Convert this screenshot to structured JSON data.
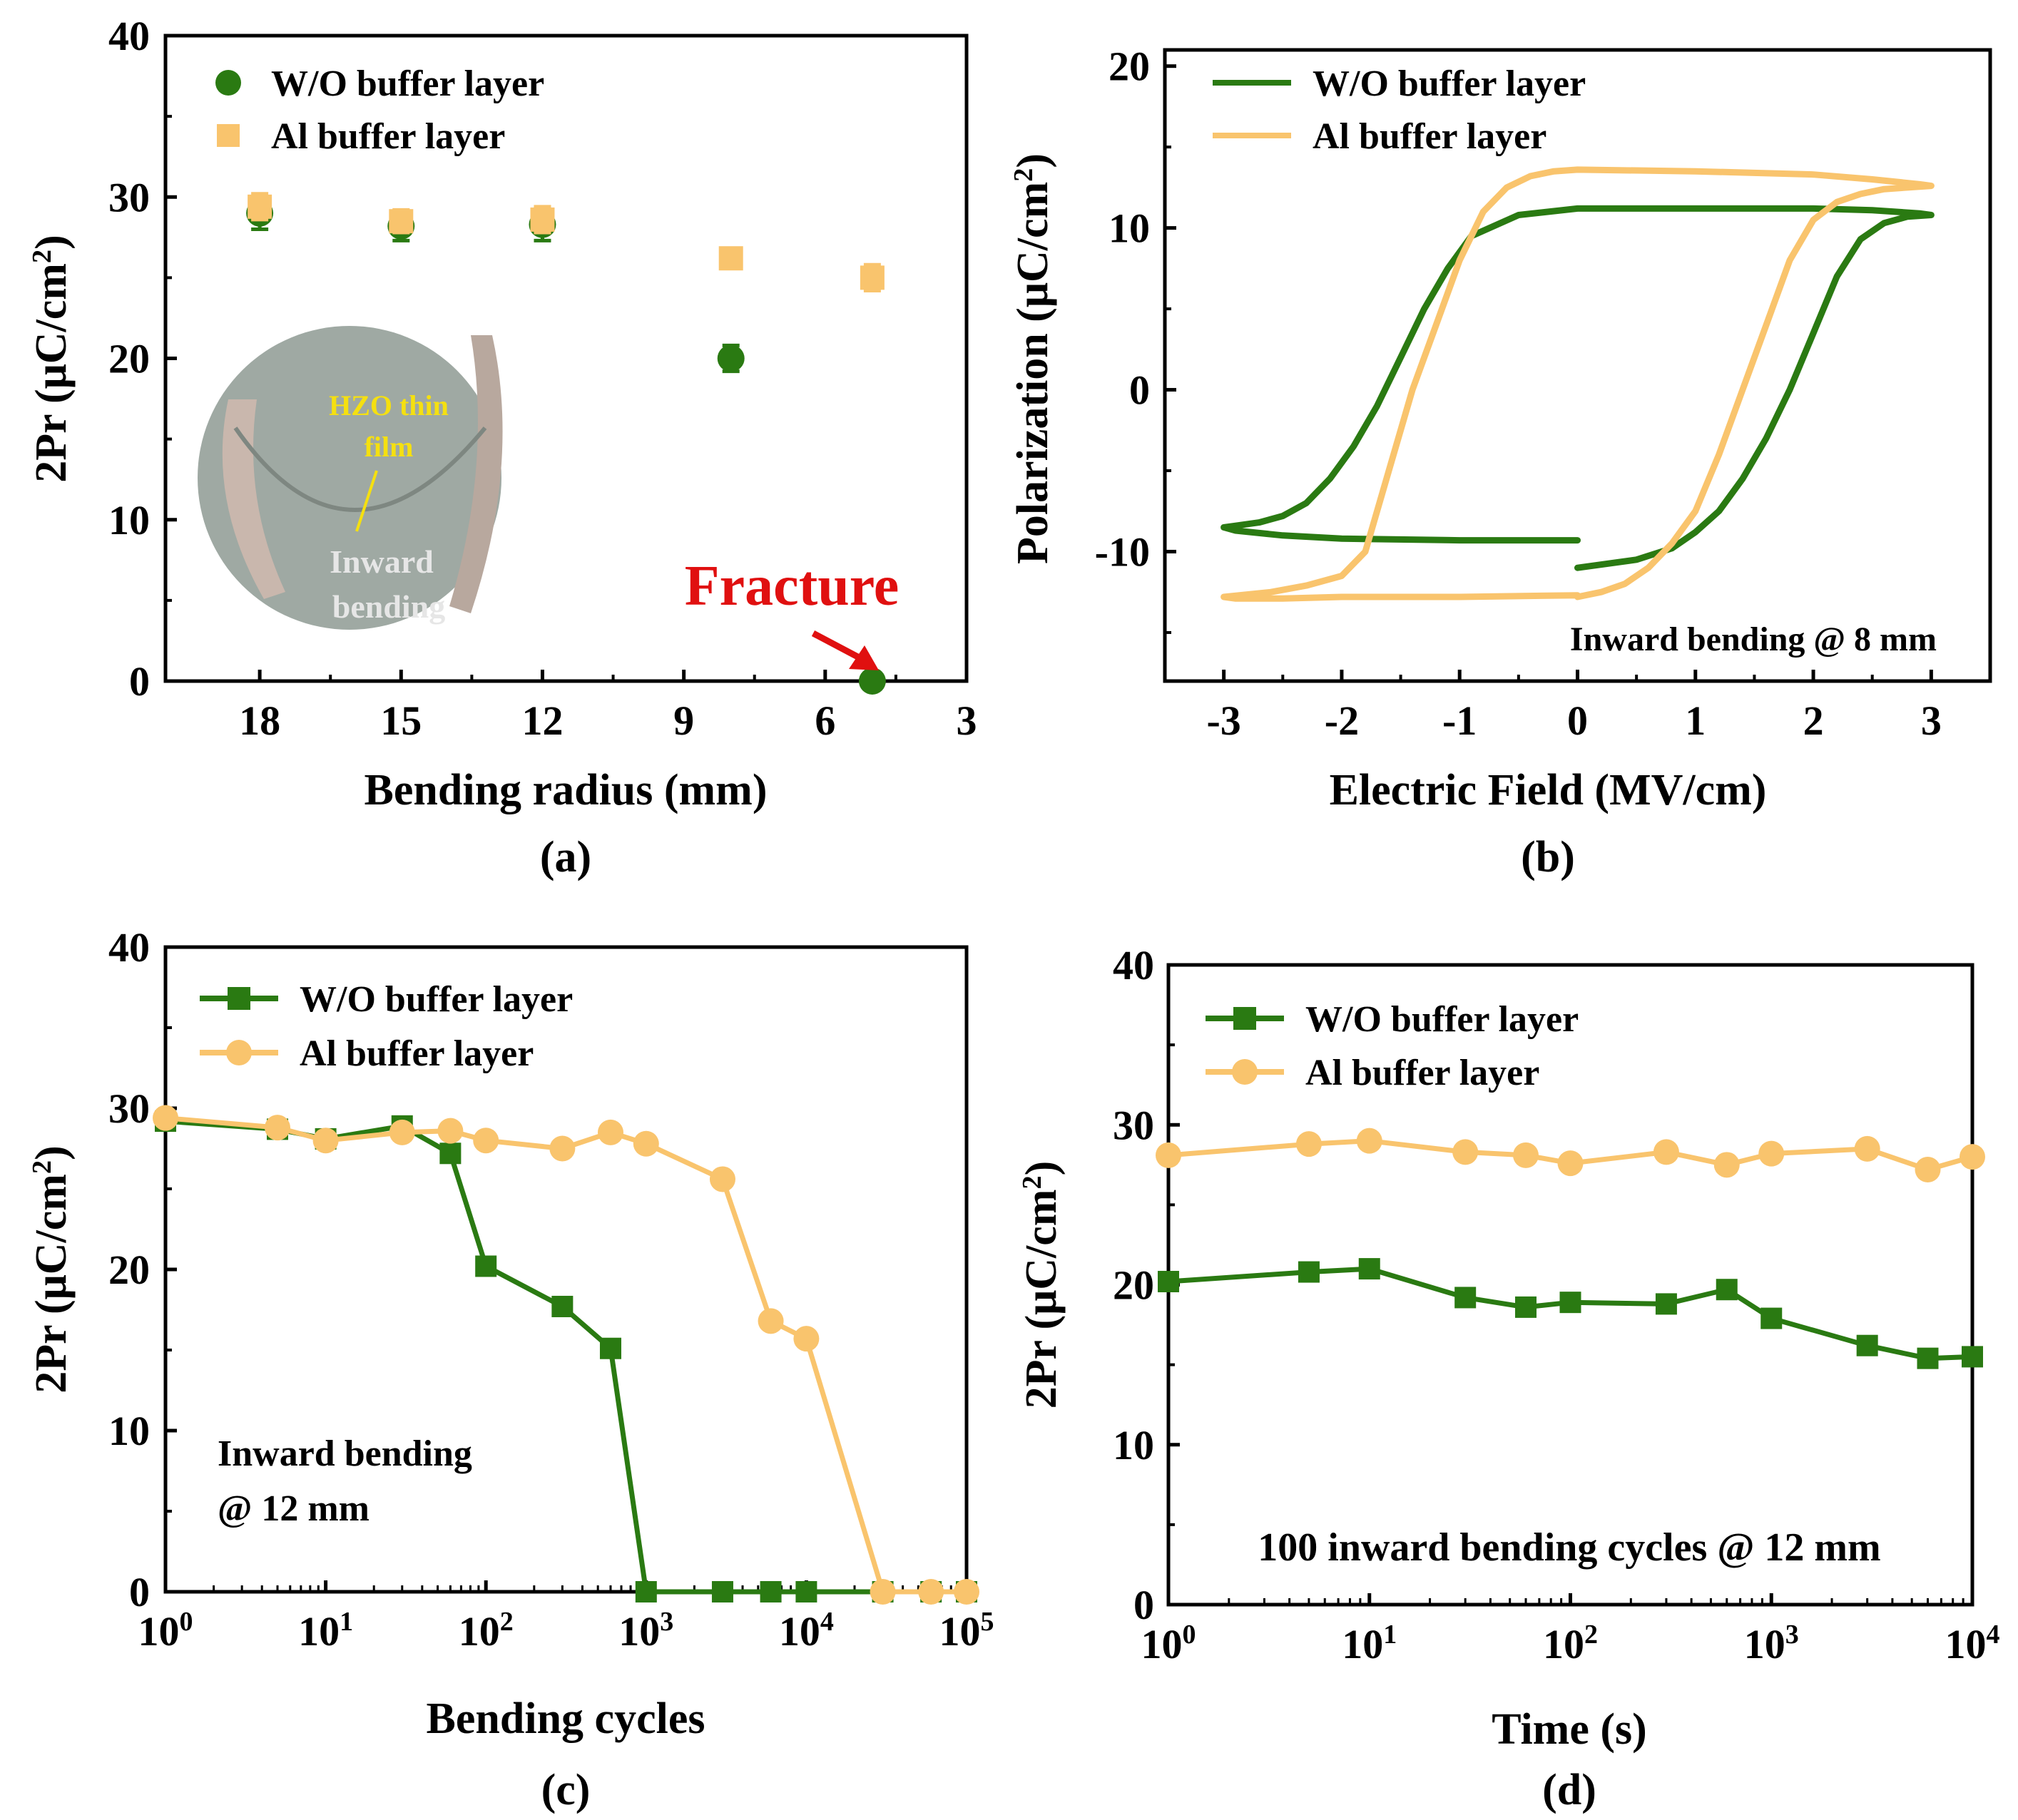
{
  "colors": {
    "green": "#2a7a12",
    "orange": "#f9c46d",
    "red": "#e01010",
    "yellow_text": "#f5e010",
    "photo_text": "#e6e6e6"
  },
  "chart_data": [
    {
      "id": "a",
      "type": "scatter",
      "panel_label": "(a)",
      "xlabel": "Bending radius (mm)",
      "ylabel": "2Pr (μC/cm²)",
      "xlim": [
        20,
        3
      ],
      "ylim": [
        0,
        40
      ],
      "xticks": [
        "18",
        "15",
        "12",
        "9",
        "6",
        "3"
      ],
      "yticks": [
        "0",
        "10",
        "20",
        "30",
        "40"
      ],
      "series": [
        {
          "name": "W/O buffer layer",
          "marker": "circle",
          "x": [
            18,
            15,
            12,
            8,
            5
          ],
          "y": [
            29,
            28.2,
            28.3,
            20,
            0
          ],
          "err": [
            1.0,
            0.9,
            1.0,
            0.8,
            0.3
          ]
        },
        {
          "name": "Al buffer layer",
          "marker": "square",
          "x": [
            18,
            15,
            12,
            8,
            5
          ],
          "y": [
            29.4,
            28.5,
            28.6,
            26.2,
            25
          ],
          "err": [
            0.8,
            0.7,
            0.8,
            0.6,
            0.8
          ]
        }
      ],
      "annotations": {
        "fracture": "Fracture",
        "inset_label_1": "HZO thin",
        "inset_label_2": "film",
        "inset_label_3": "Inward",
        "inset_label_4": "bending"
      }
    },
    {
      "id": "b",
      "type": "line",
      "panel_label": "(b)",
      "xlabel": "Electric Field (MV/cm)",
      "ylabel": "Polarization (μC/cm²)",
      "xlim": [
        -3.5,
        3.5
      ],
      "ylim": [
        -18,
        21
      ],
      "xticks": [
        "-3",
        "-2",
        "-1",
        "0",
        "1",
        "2",
        "3"
      ],
      "yticks": [
        "-10",
        "0",
        "10",
        "20"
      ],
      "annotation": "Inward bending @ 8 mm",
      "series": [
        {
          "name": "W/O buffer layer",
          "x": [
            0,
            0.5,
            0.8,
            1.0,
            1.2,
            1.4,
            1.6,
            1.8,
            2.0,
            2.2,
            2.4,
            2.6,
            2.8,
            3.0,
            2.9,
            2.5,
            2.0,
            1.0,
            0.0,
            -0.5,
            -0.9,
            -1.1,
            -1.3,
            -1.5,
            -1.7,
            -1.9,
            -2.1,
            -2.3,
            -2.5,
            -2.7,
            -2.9,
            -3.0,
            -2.9,
            -2.5,
            -2.0,
            -1.0,
            0.0
          ],
          "y": [
            -11,
            -10.5,
            -9.8,
            -8.8,
            -7.5,
            -5.5,
            -3,
            0,
            3.5,
            7,
            9.3,
            10.3,
            10.7,
            10.8,
            10.9,
            11.1,
            11.2,
            11.2,
            11.2,
            10.8,
            9.5,
            7.5,
            5,
            2,
            -1,
            -3.5,
            -5.5,
            -7,
            -7.8,
            -8.2,
            -8.4,
            -8.5,
            -8.7,
            -9.0,
            -9.2,
            -9.3,
            -9.3
          ]
        },
        {
          "name": "Al buffer layer",
          "x": [
            0,
            0.2,
            0.4,
            0.6,
            0.8,
            1.0,
            1.2,
            1.4,
            1.6,
            1.8,
            2.0,
            2.2,
            2.4,
            2.6,
            2.8,
            3.0,
            2.9,
            2.5,
            2.0,
            1.0,
            0.0,
            -0.2,
            -0.4,
            -0.6,
            -0.8,
            -1.0,
            -1.2,
            -1.4,
            -1.6,
            -1.8,
            -2.0,
            -2.3,
            -2.6,
            -3.0,
            -2.9,
            -2.5,
            -2.0,
            -1.0,
            0.0
          ],
          "y": [
            -12.8,
            -12.5,
            -12,
            -11,
            -9.5,
            -7.5,
            -4,
            0,
            4,
            8,
            10.5,
            11.6,
            12.1,
            12.4,
            12.5,
            12.6,
            12.7,
            13.0,
            13.3,
            13.5,
            13.6,
            13.5,
            13.2,
            12.5,
            11,
            8,
            4,
            0,
            -5,
            -10,
            -11.5,
            -12.1,
            -12.5,
            -12.8,
            -12.9,
            -12.9,
            -12.8,
            -12.8,
            -12.7
          ]
        }
      ]
    },
    {
      "id": "c",
      "type": "line",
      "panel_label": "(c)",
      "xlabel": "Bending cycles",
      "ylabel": "2Pr (μC/cm²)",
      "xscale": "log",
      "xlim_exp": [
        0,
        5
      ],
      "ylim": [
        0,
        40
      ],
      "xticks": [
        {
          "base": "10",
          "exp": "0"
        },
        {
          "base": "10",
          "exp": "1"
        },
        {
          "base": "10",
          "exp": "2"
        },
        {
          "base": "10",
          "exp": "3"
        },
        {
          "base": "10",
          "exp": "4"
        },
        {
          "base": "10",
          "exp": "5"
        }
      ],
      "yticks": [
        "0",
        "10",
        "20",
        "30",
        "40"
      ],
      "annotation_1": "Inward bending",
      "annotation_2": "@ 12 mm",
      "series": [
        {
          "name": "W/O buffer layer",
          "marker": "square",
          "x": [
            1,
            5,
            10,
            30,
            60,
            100,
            300,
            600,
            1000,
            3000,
            6000,
            10000,
            30000,
            60000,
            100000
          ],
          "y": [
            29.2,
            28.7,
            28.1,
            28.9,
            27.2,
            20.2,
            17.7,
            15.1,
            0,
            0,
            0,
            0,
            0,
            0,
            0
          ]
        },
        {
          "name": "Al buffer layer",
          "marker": "circle",
          "x": [
            1,
            5,
            10,
            30,
            60,
            100,
            300,
            600,
            1000,
            3000,
            6000,
            10000,
            30000,
            60000,
            100000
          ],
          "y": [
            29.4,
            28.8,
            28,
            28.5,
            28.6,
            28,
            27.5,
            28.5,
            27.8,
            25.6,
            16.8,
            15.7,
            0,
            0,
            0
          ]
        }
      ]
    },
    {
      "id": "d",
      "type": "line",
      "panel_label": "(d)",
      "xlabel": "Time (s)",
      "ylabel": "2Pr (μC/cm²)",
      "xscale": "log",
      "xlim_exp": [
        0,
        4
      ],
      "ylim": [
        0,
        40
      ],
      "xticks": [
        {
          "base": "10",
          "exp": "0"
        },
        {
          "base": "10",
          "exp": "1"
        },
        {
          "base": "10",
          "exp": "2"
        },
        {
          "base": "10",
          "exp": "3"
        },
        {
          "base": "10",
          "exp": "4"
        }
      ],
      "yticks": [
        "0",
        "10",
        "20",
        "30",
        "40"
      ],
      "annotation": "100 inward bending cycles @ 12 mm",
      "series": [
        {
          "name": "W/O buffer layer",
          "marker": "square",
          "x": [
            1,
            5,
            10,
            30,
            60,
            100,
            300,
            600,
            1000,
            3000,
            6000,
            10000
          ],
          "y": [
            20.2,
            20.8,
            21,
            19.2,
            18.6,
            18.9,
            18.8,
            19.7,
            17.9,
            16.2,
            15.4,
            15.5
          ]
        },
        {
          "name": "Al buffer layer",
          "marker": "circle",
          "x": [
            1,
            5,
            10,
            30,
            60,
            100,
            300,
            600,
            1000,
            3000,
            6000,
            10000
          ],
          "y": [
            28.1,
            28.8,
            29,
            28.3,
            28.1,
            27.6,
            28.3,
            27.5,
            28.2,
            28.5,
            27.2,
            28
          ]
        }
      ]
    }
  ]
}
